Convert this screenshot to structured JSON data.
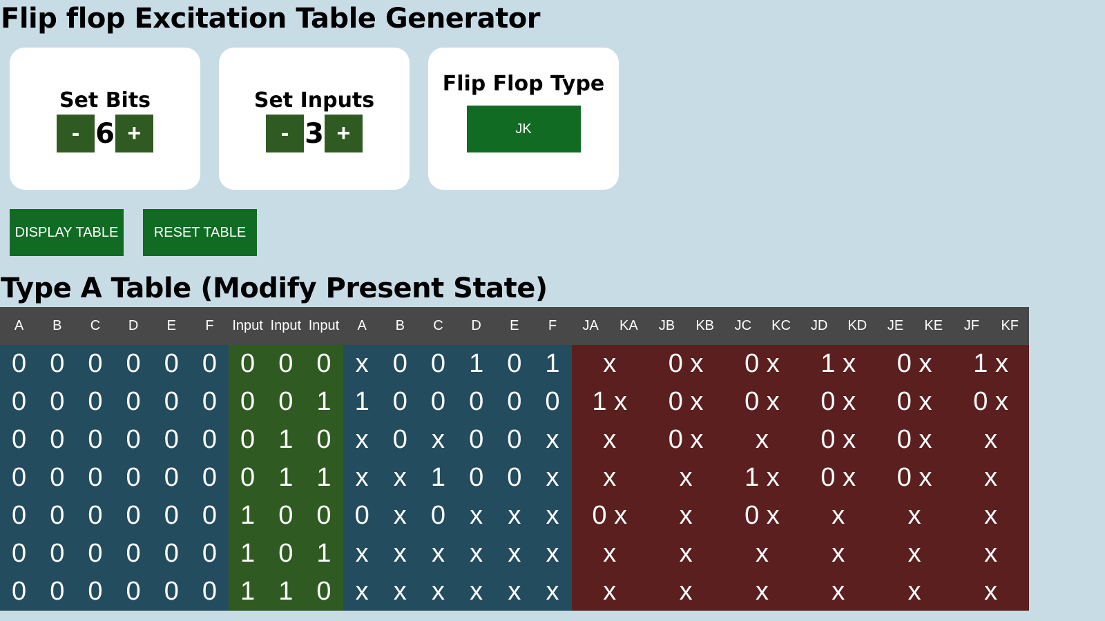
{
  "page": {
    "title": "Flip flop Excitation Table Generator",
    "table_title": "Type A Table (Modify Present State)"
  },
  "controls": {
    "bits": {
      "title": "Set Bits",
      "minus": "-",
      "plus": "+",
      "value": "6"
    },
    "inputs": {
      "title": "Set Inputs",
      "minus": "-",
      "plus": "+",
      "value": "3"
    },
    "flipflop": {
      "title": "Flip Flop Type",
      "value": "JK"
    }
  },
  "actions": {
    "display": "DISPLAY TABLE",
    "reset": "RESET TABLE"
  },
  "colors": {
    "background": "#c8dce6",
    "button_green": "#116b23",
    "stepper_green": "#2f5b22",
    "state_blue": "#234c5e",
    "output_red": "#5b1f1f",
    "header_gray": "#484848"
  },
  "table": {
    "headers": [
      "A",
      "B",
      "C",
      "D",
      "E",
      "F",
      "Input",
      "Input",
      "Input",
      "A",
      "B",
      "C",
      "D",
      "E",
      "F",
      "JA",
      "KA",
      "JB",
      "KB",
      "JC",
      "KC",
      "JD",
      "KD",
      "JE",
      "KE",
      "JF",
      "KF"
    ],
    "rows": [
      {
        "present": [
          "0",
          "0",
          "0",
          "0",
          "0",
          "0"
        ],
        "input": [
          "0",
          "0",
          "0"
        ],
        "next": [
          "x",
          "0",
          "0",
          "1",
          "0",
          "1"
        ],
        "outputs": [
          "x",
          "0 x",
          "0 x",
          "1 x",
          "0 x",
          "1 x"
        ]
      },
      {
        "present": [
          "0",
          "0",
          "0",
          "0",
          "0",
          "0"
        ],
        "input": [
          "0",
          "0",
          "1"
        ],
        "next": [
          "1",
          "0",
          "0",
          "0",
          "0",
          "0"
        ],
        "outputs": [
          "1 x",
          "0 x",
          "0 x",
          "0 x",
          "0 x",
          "0 x"
        ]
      },
      {
        "present": [
          "0",
          "0",
          "0",
          "0",
          "0",
          "0"
        ],
        "input": [
          "0",
          "1",
          "0"
        ],
        "next": [
          "x",
          "0",
          "x",
          "0",
          "0",
          "x"
        ],
        "outputs": [
          "x",
          "0 x",
          "x",
          "0 x",
          "0 x",
          "x"
        ]
      },
      {
        "present": [
          "0",
          "0",
          "0",
          "0",
          "0",
          "0"
        ],
        "input": [
          "0",
          "1",
          "1"
        ],
        "next": [
          "x",
          "x",
          "1",
          "0",
          "0",
          "x"
        ],
        "outputs": [
          "x",
          "x",
          "1 x",
          "0 x",
          "0 x",
          "x"
        ]
      },
      {
        "present": [
          "0",
          "0",
          "0",
          "0",
          "0",
          "0"
        ],
        "input": [
          "1",
          "0",
          "0"
        ],
        "next": [
          "0",
          "x",
          "0",
          "x",
          "x",
          "x"
        ],
        "outputs": [
          "0 x",
          "x",
          "0 x",
          "x",
          "x",
          "x"
        ]
      },
      {
        "present": [
          "0",
          "0",
          "0",
          "0",
          "0",
          "0"
        ],
        "input": [
          "1",
          "0",
          "1"
        ],
        "next": [
          "x",
          "x",
          "x",
          "x",
          "x",
          "x"
        ],
        "outputs": [
          "x",
          "x",
          "x",
          "x",
          "x",
          "x"
        ]
      },
      {
        "present": [
          "0",
          "0",
          "0",
          "0",
          "0",
          "0"
        ],
        "input": [
          "1",
          "1",
          "0"
        ],
        "next": [
          "x",
          "x",
          "x",
          "x",
          "x",
          "x"
        ],
        "outputs": [
          "x",
          "x",
          "x",
          "x",
          "x",
          "x"
        ]
      }
    ]
  }
}
